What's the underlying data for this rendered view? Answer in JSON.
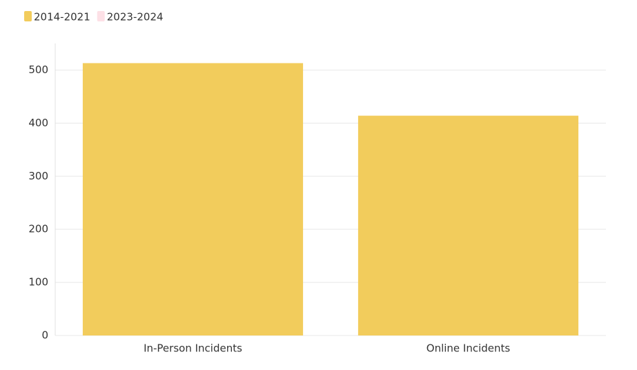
{
  "chart_data": {
    "type": "bar",
    "categories": [
      "In-Person Incidents",
      "Online Incidents"
    ],
    "series": [
      {
        "name": "2014-2021",
        "color": "#f2cc5c",
        "values": [
          513,
          414
        ]
      },
      {
        "name": "2023-2024",
        "color": "#fde0e6",
        "values": [
          null,
          null
        ],
        "hidden": true
      }
    ],
    "ylim": [
      0,
      550
    ],
    "yticks": [
      0,
      100,
      200,
      300,
      400,
      500
    ],
    "grid": true,
    "legend": "top-left"
  }
}
